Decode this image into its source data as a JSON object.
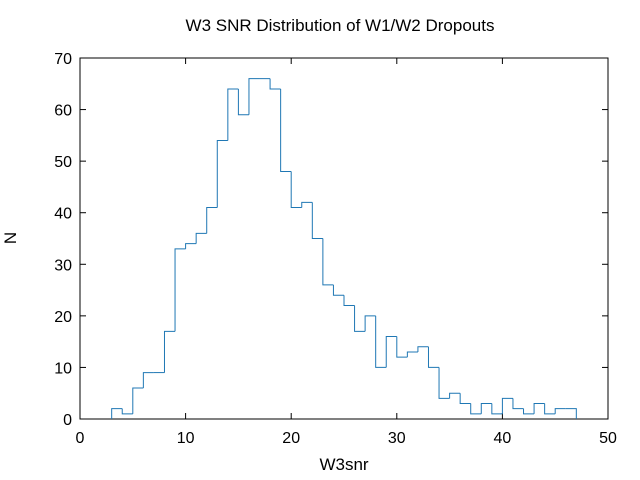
{
  "chart_data": {
    "type": "histogram",
    "title": "W3 SNR Distribution of W1/W2 Dropouts",
    "xlabel": "W3snr",
    "ylabel": "N",
    "xlim": [
      0,
      50
    ],
    "ylim": [
      0,
      70
    ],
    "xticks": [
      "0",
      "10",
      "20",
      "30",
      "40",
      "50"
    ],
    "yticks": [
      "0",
      "10",
      "20",
      "30",
      "40",
      "50",
      "60",
      "70"
    ],
    "grid": false,
    "line_color": "#1f77b4",
    "bin_width": 1,
    "bin_edges_start": 3,
    "bin_counts": [
      2,
      1,
      6,
      9,
      9,
      17,
      33,
      34,
      36,
      41,
      54,
      64,
      59,
      66,
      66,
      64,
      48,
      41,
      42,
      35,
      26,
      24,
      22,
      17,
      20,
      10,
      16,
      12,
      13,
      14,
      10,
      4,
      5,
      3,
      1,
      3,
      1,
      4,
      2,
      1,
      3,
      1,
      2,
      2
    ]
  }
}
